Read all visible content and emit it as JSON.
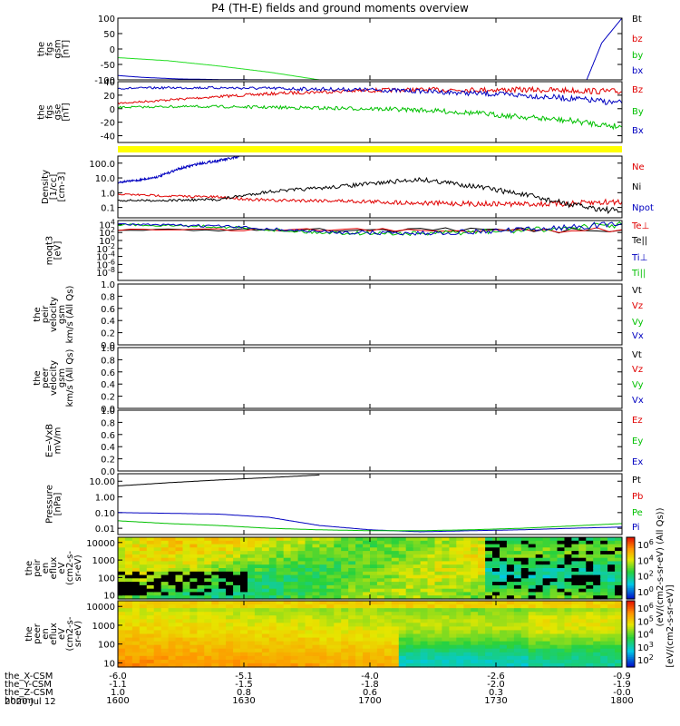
{
  "title": "P4 (TH-E) fields and ground moments overview",
  "footer": {
    "date": "2020 Jul 12",
    "rows": [
      {
        "label": "the_X-CSM",
        "values": [
          "-6.0",
          "-5.1",
          "-4.0",
          "-2.6",
          "-0.9"
        ]
      },
      {
        "label": "the_Y-CSM",
        "values": [
          "-1.1",
          "-1.5",
          "-1.8",
          "-2.0",
          "-1.9"
        ]
      },
      {
        "label": "the_Z-CSM",
        "values": [
          "1.0",
          "0.8",
          "0.6",
          "0.3",
          "-0.0"
        ]
      },
      {
        "label": "hhmm",
        "values": [
          "1600",
          "1630",
          "1700",
          "1730",
          "1800"
        ]
      }
    ]
  },
  "colorbar": {
    "label": "[eV/(cm2-s-sr-eV)]",
    "upper_label": "(eV/(cm2-s-sr-eV) (All Qs))",
    "upper_ticks": [
      "10^6",
      "10^4",
      "10^2",
      "10^0"
    ],
    "lower_ticks": [
      "10^6",
      "10^5",
      "10^4",
      "10^3",
      "10^2"
    ]
  },
  "chart_data": [
    {
      "type": "line",
      "id": "fgs_gsm",
      "ylabel": [
        "the",
        "fgs",
        "gsm",
        "[nT]"
      ],
      "ylim": [
        -100,
        100
      ],
      "yticks": [
        "100",
        "50",
        "0",
        "-50",
        "-100"
      ],
      "legend": [
        {
          "name": "Bt",
          "color": "#000000"
        },
        {
          "name": "bz",
          "color": "#e00000"
        },
        {
          "name": "by",
          "color": "#00c000"
        },
        {
          "name": "bx",
          "color": "#0000c0"
        }
      ],
      "x": [
        0,
        0.1,
        0.2,
        0.3,
        0.4,
        0.5,
        0.6,
        0.7,
        0.8,
        0.9,
        0.95,
        1.0
      ],
      "series": [
        {
          "name": "by",
          "color": "#22dd22",
          "x": [
            0,
            0.1,
            0.2,
            0.3,
            0.4
          ],
          "values": [
            -28,
            -38,
            -55,
            -75,
            -100
          ]
        },
        {
          "name": "bx",
          "color": "#0000c0",
          "x": [
            0,
            0.05,
            0.12,
            0.2,
            0.3
          ],
          "values": [
            -86,
            -92,
            -97,
            -99,
            -100
          ]
        },
        {
          "name": "Bt",
          "color": "#0000c0",
          "x": [
            0.93,
            0.96,
            1.0
          ],
          "values": [
            -100,
            20,
            100
          ]
        }
      ]
    },
    {
      "type": "line",
      "id": "fgs_gse",
      "ylabel": [
        "the",
        "fgs",
        "gse",
        "[nT]"
      ],
      "ylim": [
        -50,
        40
      ],
      "yticks": [
        "40",
        "20",
        "0",
        "-20",
        "-40"
      ],
      "legend": [
        {
          "name": "Bz",
          "color": "#e00000"
        },
        {
          "name": "By",
          "color": "#00c000"
        },
        {
          "name": "Bx",
          "color": "#0000c0"
        }
      ],
      "series": [
        {
          "name": "Bz",
          "color": "#e00000",
          "x": [
            0,
            0.1,
            0.2,
            0.3,
            0.4,
            0.5,
            0.6,
            0.7,
            0.8,
            0.9,
            1.0
          ],
          "values": [
            8,
            13,
            18,
            22,
            25,
            27,
            28,
            28,
            28,
            27,
            25
          ]
        },
        {
          "name": "Bx",
          "color": "#0000c0",
          "x": [
            0,
            0.1,
            0.2,
            0.3,
            0.4,
            0.5,
            0.6,
            0.7,
            0.8,
            0.9,
            1.0
          ],
          "values": [
            30,
            31,
            31,
            30,
            29,
            28,
            26,
            23,
            20,
            15,
            8
          ]
        },
        {
          "name": "By",
          "color": "#00c000",
          "x": [
            0,
            0.1,
            0.2,
            0.3,
            0.4,
            0.5,
            0.6,
            0.7,
            0.8,
            0.9,
            1.0
          ],
          "values": [
            2,
            3,
            3,
            2,
            1,
            0,
            -2,
            -6,
            -12,
            -18,
            -27
          ]
        }
      ]
    },
    {
      "type": "line",
      "id": "density",
      "ylog": true,
      "ylabel": [
        "Density",
        "[1/cc]",
        "[cm-3]"
      ],
      "ylim": [
        0.02,
        300
      ],
      "yticks": [
        "100.0",
        "10.0",
        "1.0",
        "0.1"
      ],
      "legend": [
        {
          "name": "Ne",
          "color": "#e00000"
        },
        {
          "name": "Ni",
          "color": "#000000"
        },
        {
          "name": "Npot",
          "color": "#0000c0"
        }
      ],
      "series": [
        {
          "name": "Npot",
          "color": "#0000c0",
          "x": [
            0,
            0.04,
            0.08,
            0.12,
            0.16,
            0.2,
            0.24
          ],
          "values": [
            5,
            7,
            12,
            40,
            90,
            150,
            250
          ]
        },
        {
          "name": "Ne",
          "color": "#e00000",
          "x": [
            0,
            0.1,
            0.2,
            0.3,
            0.4,
            0.5,
            0.6,
            0.7,
            0.8,
            0.9,
            1.0
          ],
          "values": [
            0.8,
            0.6,
            0.5,
            0.3,
            0.3,
            0.25,
            0.2,
            0.18,
            0.17,
            0.18,
            0.25
          ]
        },
        {
          "name": "Ni",
          "color": "#000000",
          "x": [
            0,
            0.1,
            0.2,
            0.3,
            0.4,
            0.5,
            0.6,
            0.7,
            0.8,
            0.9,
            1.0
          ],
          "values": [
            0.3,
            0.3,
            0.35,
            1.2,
            2.0,
            4.0,
            8.0,
            3.0,
            0.8,
            0.15,
            0.05
          ]
        }
      ]
    },
    {
      "type": "line",
      "id": "moqt3",
      "ylog": true,
      "ylabel": [
        "moqt3",
        "[eV]"
      ],
      "ylim": [
        1e-10,
        100000
      ],
      "yticks": [
        "10^4",
        "10^2",
        "10^0",
        "10^-2",
        "10^-4",
        "10^-6",
        "10^-8"
      ],
      "legend": [
        {
          "name": "Te⊥",
          "color": "#e00000"
        },
        {
          "name": "Te||",
          "color": "#000000"
        },
        {
          "name": "Ti⊥",
          "color": "#0000c0"
        },
        {
          "name": "Ti||",
          "color": "#00c000"
        }
      ],
      "series": [
        {
          "name": "Te||",
          "color": "#000000",
          "x": [
            0,
            1
          ],
          "values": [
            400,
            400
          ]
        },
        {
          "name": "Te⊥",
          "color": "#e00000",
          "x": [
            0,
            1
          ],
          "values": [
            500,
            500
          ]
        },
        {
          "name": "Ti||",
          "color": "#00c000",
          "x": [
            0,
            0.2,
            0.4,
            0.6,
            0.8,
            1.0
          ],
          "values": [
            10000,
            3000,
            100,
            50,
            300,
            10000
          ]
        },
        {
          "name": "Ti⊥",
          "color": "#0000c0",
          "x": [
            0,
            0.2,
            0.4,
            0.6,
            0.8,
            1.0
          ],
          "values": [
            12000,
            4000,
            150,
            60,
            400,
            15000
          ]
        }
      ]
    },
    {
      "type": "line",
      "id": "peir_velocity",
      "ylabel": [
        "the",
        "peir",
        "velocity",
        "gsm",
        "km/s (All Qs)"
      ],
      "ylim": [
        0,
        1
      ],
      "yticks": [
        "1.0",
        "0.8",
        "0.6",
        "0.4",
        "0.2",
        "0.0"
      ],
      "legend": [
        {
          "name": "Vt",
          "color": "#000000"
        },
        {
          "name": "Vz",
          "color": "#e00000"
        },
        {
          "name": "Vy",
          "color": "#00c000"
        },
        {
          "name": "Vx",
          "color": "#0000c0"
        }
      ],
      "series": []
    },
    {
      "type": "line",
      "id": "peer_velocity",
      "ylabel": [
        "the",
        "peer",
        "velocity",
        "gsm",
        "km/s (All Qs)"
      ],
      "ylim": [
        0,
        1
      ],
      "yticks": [
        "1.0",
        "0.8",
        "0.6",
        "0.4",
        "0.2",
        "0.0"
      ],
      "legend": [
        {
          "name": "Vt",
          "color": "#000000"
        },
        {
          "name": "Vz",
          "color": "#e00000"
        },
        {
          "name": "Vy",
          "color": "#00c000"
        },
        {
          "name": "Vx",
          "color": "#0000c0"
        }
      ],
      "series": []
    },
    {
      "type": "line",
      "id": "efield",
      "ylabel": [
        "E=-VxB",
        "mV/m"
      ],
      "ylim": [
        0,
        1
      ],
      "yticks": [
        "1.0",
        "0.8",
        "0.6",
        "0.4",
        "0.2",
        "0.0"
      ],
      "legend": [
        {
          "name": "Ez",
          "color": "#e00000"
        },
        {
          "name": "Ey",
          "color": "#00c000"
        },
        {
          "name": "Ex",
          "color": "#0000c0"
        }
      ],
      "series": []
    },
    {
      "type": "line",
      "id": "pressure",
      "ylog": true,
      "ylabel": [
        "Pressure",
        "[nPa]"
      ],
      "ylim": [
        0.004,
        30
      ],
      "yticks": [
        "10.00",
        "1.00",
        "0.10",
        "0.01"
      ],
      "legend": [
        {
          "name": "Pt",
          "color": "#000000"
        },
        {
          "name": "Pb",
          "color": "#e00000"
        },
        {
          "name": "Pe",
          "color": "#00c000"
        },
        {
          "name": "Pi",
          "color": "#0000c0"
        }
      ],
      "series": [
        {
          "name": "Pt",
          "color": "#000000",
          "x": [
            0,
            0.1,
            0.2,
            0.3,
            0.4
          ],
          "values": [
            5,
            8,
            12,
            17,
            25
          ]
        },
        {
          "name": "Pi",
          "color": "#0000c0",
          "x": [
            0,
            0.1,
            0.2,
            0.3,
            0.4,
            0.5,
            0.6,
            0.7,
            0.8,
            0.9,
            1.0
          ],
          "values": [
            0.1,
            0.09,
            0.08,
            0.05,
            0.015,
            0.008,
            0.006,
            0.007,
            0.008,
            0.01,
            0.012
          ]
        },
        {
          "name": "Pe",
          "color": "#00c000",
          "x": [
            0,
            0.1,
            0.2,
            0.3,
            0.4,
            0.5,
            0.6,
            0.7,
            0.8,
            0.9,
            1.0
          ],
          "values": [
            0.03,
            0.02,
            0.015,
            0.01,
            0.008,
            0.007,
            0.007,
            0.008,
            0.01,
            0.014,
            0.02
          ]
        }
      ]
    },
    {
      "type": "heatmap",
      "id": "peir_en_eflux",
      "ylabel": [
        "the",
        "peir",
        "en",
        "eflux",
        "eV",
        "(cm2-s-",
        "sr-eV)"
      ],
      "yticks": [
        "10000",
        "1000",
        "100",
        "10"
      ]
    },
    {
      "type": "heatmap",
      "id": "peer_en_eflux",
      "ylabel": [
        "the",
        "peer",
        "en",
        "eflux",
        "eV",
        "(cm2-s-",
        "sr-eV)"
      ],
      "yticks": [
        "10000",
        "1000",
        "100",
        "10"
      ]
    }
  ]
}
